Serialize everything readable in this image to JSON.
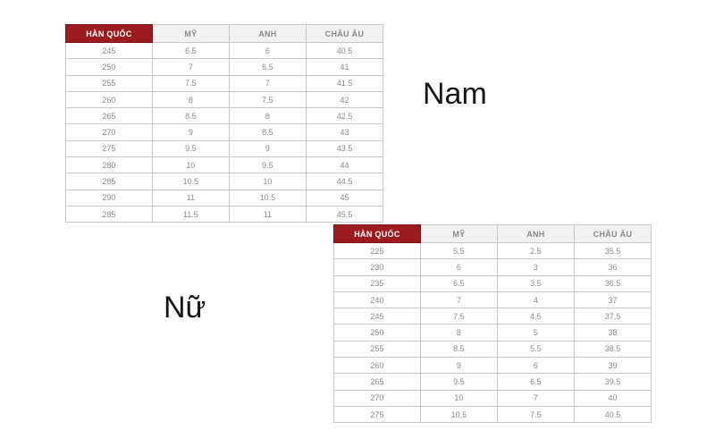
{
  "labels": {
    "men": "Nam",
    "women": "Nữ"
  },
  "colors": {
    "header_highlight_bg": "#9C1B20",
    "header_highlight_text": "#FFFFFF",
    "header_bg": "#F2F2F2",
    "header_text": "#8A8A8A",
    "cell_text": "#8A8A8A",
    "border": "#C9C9C9",
    "label_text": "#161616",
    "page_bg": "#FFFFFF"
  },
  "chart_data": [
    {
      "type": "table",
      "title": "Nam",
      "columns": [
        "HÀN QUỐC",
        "MỸ",
        "ANH",
        "CHÂU ÂU"
      ],
      "rows": [
        [
          "245",
          "6.5",
          "6",
          "40.5"
        ],
        [
          "250",
          "7",
          "6.5",
          "41"
        ],
        [
          "255",
          "7.5",
          "7",
          "41.5"
        ],
        [
          "260",
          "8",
          "7.5",
          "42"
        ],
        [
          "265",
          "8.5",
          "8",
          "42.5"
        ],
        [
          "270",
          "9",
          "8.5",
          "43"
        ],
        [
          "275",
          "9.5",
          "9",
          "43.5"
        ],
        [
          "280",
          "10",
          "9.5",
          "44"
        ],
        [
          "285",
          "10.5",
          "10",
          "44.5"
        ],
        [
          "290",
          "11",
          "10.5",
          "45"
        ],
        [
          "285",
          "11.5",
          "11",
          "45.5"
        ]
      ]
    },
    {
      "type": "table",
      "title": "Nữ",
      "columns": [
        "HÀN QUỐC",
        "MỸ",
        "ANH",
        "CHÂU ÂU"
      ],
      "rows": [
        [
          "225",
          "5.5",
          "2.5",
          "35.5"
        ],
        [
          "230",
          "6",
          "3",
          "36"
        ],
        [
          "235",
          "6.5",
          "3.5",
          "36.5"
        ],
        [
          "240",
          "7",
          "4",
          "37"
        ],
        [
          "245",
          "7.5",
          "4.5",
          "37.5"
        ],
        [
          "250",
          "8",
          "5",
          "38"
        ],
        [
          "255",
          "8.5",
          "5.5",
          "38.5"
        ],
        [
          "260",
          "9",
          "6",
          "39"
        ],
        [
          "265",
          "9.5",
          "6.5",
          "39.5"
        ],
        [
          "270",
          "10",
          "7",
          "40"
        ],
        [
          "275",
          "10.5",
          "7.5",
          "40.5"
        ]
      ]
    }
  ]
}
